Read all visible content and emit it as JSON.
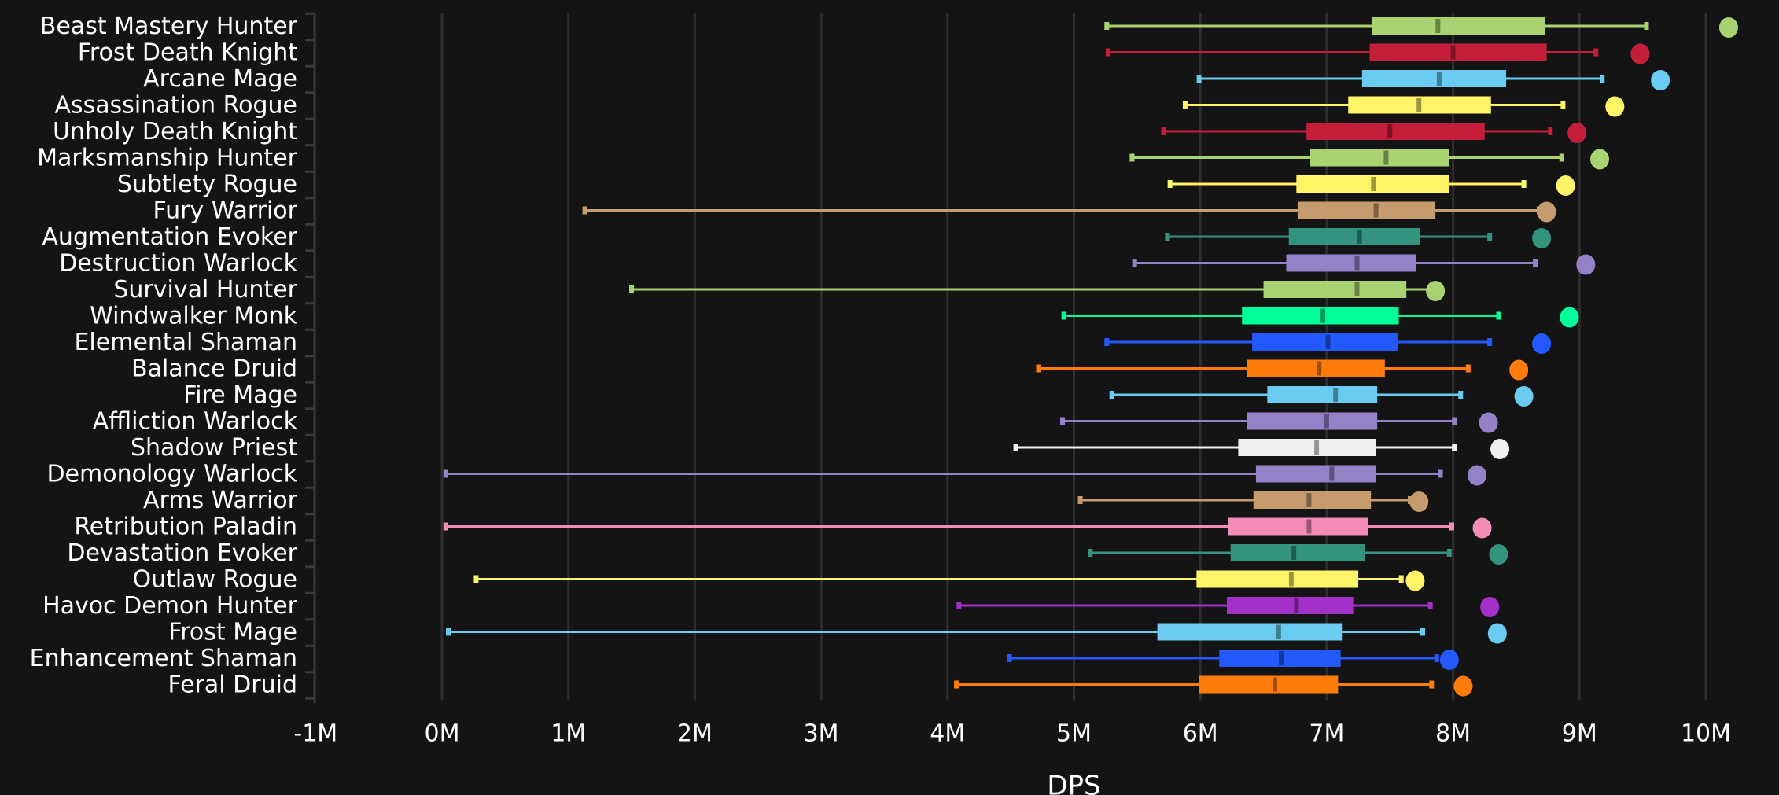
{
  "chart_data": {
    "type": "box",
    "title": "",
    "xlabel": "DPS",
    "ylabel": "",
    "xlim": [
      -1,
      10.5
    ],
    "x_unit": "M",
    "x_ticks": [
      "-1M",
      "0M",
      "1M",
      "2M",
      "3M",
      "4M",
      "5M",
      "6M",
      "7M",
      "8M",
      "9M",
      "10M"
    ],
    "x_tick_values": [
      -1,
      0,
      1,
      2,
      3,
      4,
      5,
      6,
      7,
      8,
      9,
      10
    ],
    "grid": "vertical",
    "legend": "none",
    "series": [
      {
        "name": "Beast Mastery Hunter",
        "color": "#a9d271",
        "min": 5.26,
        "q1": 7.36,
        "median": 7.88,
        "q3": 8.73,
        "max": 9.53,
        "outlier": 10.18
      },
      {
        "name": "Frost Death Knight",
        "color": "#c41e3a",
        "min": 5.27,
        "q1": 7.34,
        "median": 8.0,
        "q3": 8.74,
        "max": 9.13,
        "outlier": 9.48
      },
      {
        "name": "Arcane Mage",
        "color": "#69ccf0",
        "min": 5.99,
        "q1": 7.28,
        "median": 7.89,
        "q3": 8.42,
        "max": 9.18,
        "outlier": 9.64
      },
      {
        "name": "Assassination Rogue",
        "color": "#fff468",
        "min": 5.88,
        "q1": 7.17,
        "median": 7.73,
        "q3": 8.3,
        "max": 8.87,
        "outlier": 9.28
      },
      {
        "name": "Unholy Death Knight",
        "color": "#c41e3a",
        "min": 5.71,
        "q1": 6.84,
        "median": 7.5,
        "q3": 8.25,
        "max": 8.77,
        "outlier": 8.98
      },
      {
        "name": "Marksmanship Hunter",
        "color": "#a9d271",
        "min": 5.46,
        "q1": 6.87,
        "median": 7.47,
        "q3": 7.97,
        "max": 8.86,
        "outlier": 9.16
      },
      {
        "name": "Subtlety Rogue",
        "color": "#fff468",
        "min": 5.76,
        "q1": 6.76,
        "median": 7.37,
        "q3": 7.97,
        "max": 8.56,
        "outlier": 8.89
      },
      {
        "name": "Fury Warrior",
        "color": "#c69b6d",
        "min": 1.13,
        "q1": 6.77,
        "median": 7.39,
        "q3": 7.86,
        "max": 8.68,
        "outlier": 8.74
      },
      {
        "name": "Augmentation Evoker",
        "color": "#33937f",
        "min": 5.74,
        "q1": 6.7,
        "median": 7.26,
        "q3": 7.74,
        "max": 8.29,
        "outlier": 8.7
      },
      {
        "name": "Destruction Warlock",
        "color": "#9482c9",
        "min": 5.48,
        "q1": 6.68,
        "median": 7.24,
        "q3": 7.71,
        "max": 8.65,
        "outlier": 9.05
      },
      {
        "name": "Survival Hunter",
        "color": "#a9d271",
        "min": 1.5,
        "q1": 6.5,
        "median": 7.24,
        "q3": 7.63,
        "max": 7.85,
        "outlier": 7.86
      },
      {
        "name": "Windwalker Monk",
        "color": "#00ff98",
        "min": 4.92,
        "q1": 6.33,
        "median": 6.97,
        "q3": 7.57,
        "max": 8.36,
        "outlier": 8.92
      },
      {
        "name": "Elemental Shaman",
        "color": "#2459ff",
        "min": 5.26,
        "q1": 6.41,
        "median": 7.01,
        "q3": 7.56,
        "max": 8.29,
        "outlier": 8.7
      },
      {
        "name": "Balance Druid",
        "color": "#ff7c0a",
        "min": 4.72,
        "q1": 6.37,
        "median": 6.94,
        "q3": 7.46,
        "max": 8.12,
        "outlier": 8.52
      },
      {
        "name": "Fire Mage",
        "color": "#69ccf0",
        "min": 5.3,
        "q1": 6.53,
        "median": 7.07,
        "q3": 7.4,
        "max": 8.06,
        "outlier": 8.56
      },
      {
        "name": "Affliction Warlock",
        "color": "#9482c9",
        "min": 4.91,
        "q1": 6.37,
        "median": 7.0,
        "q3": 7.4,
        "max": 8.01,
        "outlier": 8.28
      },
      {
        "name": "Shadow Priest",
        "color": "#f0f0f0",
        "min": 4.54,
        "q1": 6.3,
        "median": 6.92,
        "q3": 7.39,
        "max": 8.01,
        "outlier": 8.37
      },
      {
        "name": "Demonology Warlock",
        "color": "#9482c9",
        "min": 0.03,
        "q1": 6.44,
        "median": 7.04,
        "q3": 7.39,
        "max": 7.9,
        "outlier": 8.19
      },
      {
        "name": "Arms Warrior",
        "color": "#c69b6d",
        "min": 5.05,
        "q1": 6.42,
        "median": 6.86,
        "q3": 7.35,
        "max": 7.66,
        "outlier": 7.73
      },
      {
        "name": "Retribution Paladin",
        "color": "#f48cba",
        "min": 0.03,
        "q1": 6.22,
        "median": 6.86,
        "q3": 7.33,
        "max": 7.99,
        "outlier": 8.23
      },
      {
        "name": "Devastation Evoker",
        "color": "#33937f",
        "min": 5.13,
        "q1": 6.24,
        "median": 6.74,
        "q3": 7.3,
        "max": 7.97,
        "outlier": 8.36
      },
      {
        "name": "Outlaw Rogue",
        "color": "#fff468",
        "min": 0.27,
        "q1": 5.97,
        "median": 6.72,
        "q3": 7.25,
        "max": 7.59,
        "outlier": 7.7
      },
      {
        "name": "Havoc Demon Hunter",
        "color": "#a330c9",
        "min": 4.09,
        "q1": 6.21,
        "median": 6.76,
        "q3": 7.21,
        "max": 7.82,
        "outlier": 8.29
      },
      {
        "name": "Frost Mage",
        "color": "#69ccf0",
        "min": 0.05,
        "q1": 5.66,
        "median": 6.62,
        "q3": 7.12,
        "max": 7.76,
        "outlier": 8.35
      },
      {
        "name": "Enhancement Shaman",
        "color": "#2459ff",
        "min": 4.49,
        "q1": 6.15,
        "median": 6.64,
        "q3": 7.11,
        "max": 7.87,
        "outlier": 7.97
      },
      {
        "name": "Feral Druid",
        "color": "#ff7c0a",
        "min": 4.07,
        "q1": 5.99,
        "median": 6.59,
        "q3": 7.09,
        "max": 7.83,
        "outlier": 8.08
      }
    ]
  }
}
